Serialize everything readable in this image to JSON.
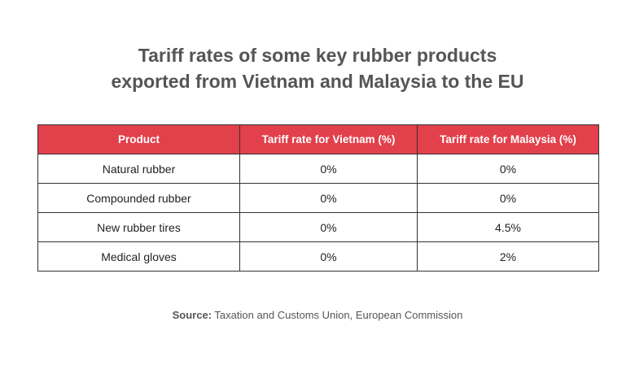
{
  "title": [
    "Tariff rates of some key rubber products",
    "exported from Vietnam and Malaysia to the EU"
  ],
  "table": {
    "header": [
      "Product",
      "Tariff rate for Vietnam (%)",
      "Tariff rate for Malaysia (%)"
    ],
    "rows": [
      [
        "Natural rubber",
        "0%",
        "0%"
      ],
      [
        "Compounded rubber",
        "0%",
        "0%"
      ],
      [
        "New rubber tires",
        "0%",
        "4.5%"
      ],
      [
        "Medical gloves",
        "0%",
        "2%"
      ]
    ]
  },
  "source": {
    "label": "Source:",
    "text": "Taxation and Customs Union, European Commission"
  }
}
